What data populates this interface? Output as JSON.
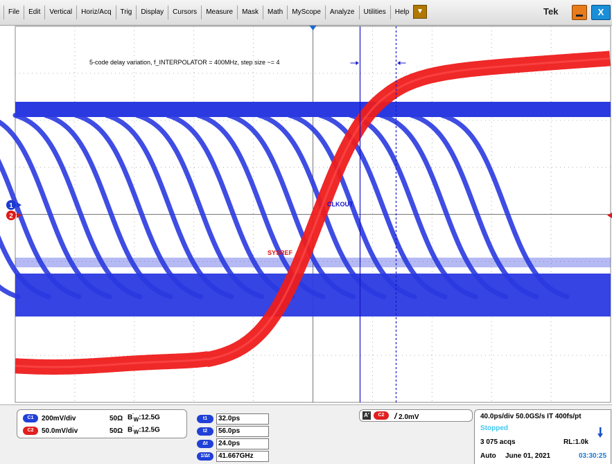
{
  "menu": {
    "items": [
      "File",
      "Edit",
      "Vertical",
      "Horiz/Acq",
      "Trig",
      "Display",
      "Cursors",
      "Measure",
      "Mask",
      "Math",
      "MyScope",
      "Analyze",
      "Utilities",
      "Help"
    ],
    "brand": "Tek",
    "close_label": "X"
  },
  "waveform": {
    "annotation": "5-code delay variation, f_INTERPOLATOR = 400MHz, step size ~= 4",
    "labels": {
      "clkout": "CLKOUT",
      "sysref": "SYSREF"
    },
    "channel_markers": {
      "ch1": "1",
      "ch2": "2"
    },
    "colors": {
      "ch1": "#2a3ae0",
      "ch2": "#ee1c1c",
      "grid": "#9a9a9a",
      "cursor": "#1515c8"
    }
  },
  "channels": [
    {
      "tag": "C1",
      "scale": "200mV/div",
      "impedance": "50Ω",
      "bw_prefix": "B",
      "bw_suffix": "W",
      "bw": ":12.5G"
    },
    {
      "tag": "C2",
      "scale": "50.0mV/div",
      "impedance": "50Ω",
      "bw_prefix": "B",
      "bw_suffix": "W",
      "bw": ":12.5G"
    }
  ],
  "cursors": [
    {
      "tag": "t1",
      "value": "32.0ps"
    },
    {
      "tag": "t2",
      "value": "56.0ps"
    },
    {
      "tag": "Δt",
      "value": "24.0ps"
    },
    {
      "tag": "1/Δt",
      "value": "41.667GHz"
    }
  ],
  "trigger": {
    "mode": "A'",
    "source": "C2",
    "slope": "/",
    "level": "2.0mV"
  },
  "acquisition": {
    "timebase": "40.0ps/div 50.0GS/s  IT    400fs/pt",
    "state": "Stopped",
    "acqs": "3 075 acqs",
    "record_length": "RL:1.0k",
    "mode": "Auto",
    "date": "June 01, 2021",
    "time": "03:30:25"
  }
}
